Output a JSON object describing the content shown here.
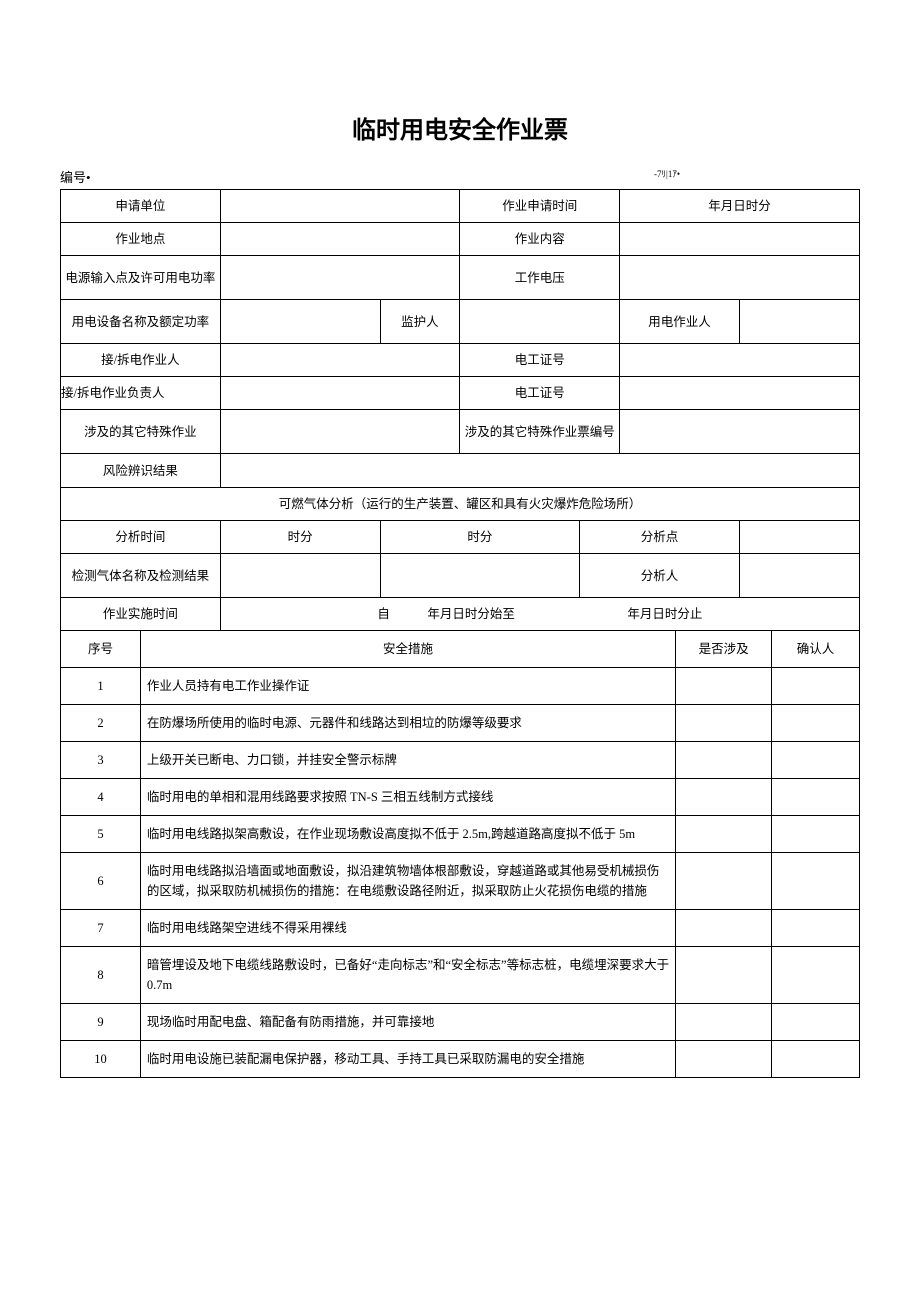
{
  "title": "临时用电安全作业票",
  "serial_label": "编号•",
  "small_note": "-7ﾘ|1ｱ•",
  "labels": {
    "apply_unit": "申请单位",
    "apply_time": "作业申请时间",
    "apply_time_value": "年月日时分",
    "work_place": "作业地点",
    "work_content": "作业内容",
    "power_input": "电源输入点及许可用电功率",
    "work_voltage": "工作电压",
    "equip_name": "用电设备名称及额定功率",
    "monitor": "监护人",
    "operator": "用电作业人",
    "connect_worker": "接/拆电作业人",
    "elec_cert1": "电工证号",
    "connect_leader": "接/拆电作业负责人",
    "elec_cert2": "电工证号",
    "other_special": "涉及的其它特殊作业",
    "other_special_no": "涉及的其它特殊作业票编号",
    "risk_result": "风险辨识结果",
    "gas_header": "可燃气体分析（运行的生产装置、罐区和具有火灾爆炸危险场所）",
    "analysis_time": "分析时间",
    "time_unit": "时分",
    "analysis_point": "分析点",
    "gas_name": "检测气体名称及检测结果",
    "analyst": "分析人",
    "impl_time": "作业实施时间",
    "impl_time_value": "自   年月日时分始至         年月日时分止",
    "seq": "序号",
    "measure": "安全措施",
    "involved": "是否涉及",
    "confirmer": "确认人"
  },
  "measures": [
    {
      "no": "1",
      "text": "作业人员持有电工作业操作证"
    },
    {
      "no": "2",
      "text": "在防爆场所使用的临时电源、元器件和线路达到相垃的防爆等级要求"
    },
    {
      "no": "3",
      "text": "上级开关已断电、力口锁，并挂安全警示标牌"
    },
    {
      "no": "4",
      "text": "临时用电的单相和混用线路要求按照 TN-S 三相五线制方式接线"
    },
    {
      "no": "5",
      "text": "临时用电线路拟架高敷设，在作业现场敷设高度拟不低于 2.5m,跨越道路高度拟不低于 5m"
    },
    {
      "no": "6",
      "text": "临时用电线路拟沿墙面或地面敷设，拟沿建筑物墙体根部敷设，穿越道路或其他易受机械损伤的区域，拟采取防机械损伤的措施：在电缆敷设路径附近，拟采取防止火花损伤电缆的措施"
    },
    {
      "no": "7",
      "text": "临时用电线路架空进线不得采用裸线"
    },
    {
      "no": "8",
      "text": "暗管埋设及地下电缆线路敷设时，已备好“走向标志”和“安全标志”等标志桩，电缆埋深要求大于 0.7m"
    },
    {
      "no": "9",
      "text": "现场临时用配电盘、箱配备有防雨措施，并可靠接地"
    },
    {
      "no": "10",
      "text": "临时用电设施已装配漏电保护器，移动工具、手持工具已采取防漏电的安全措施"
    }
  ]
}
